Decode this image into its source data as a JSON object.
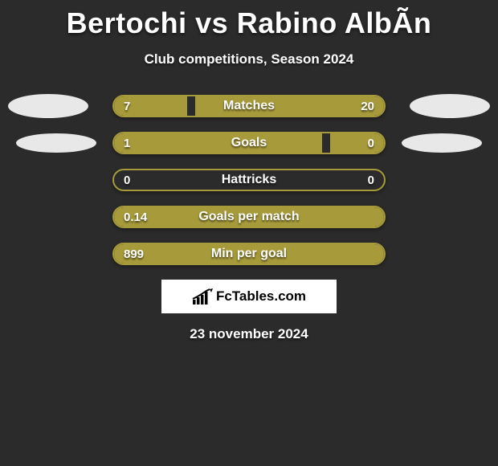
{
  "title": "Bertochi vs Rabino AlbÃ­n",
  "subtitle": "Club competitions, Season 2024",
  "bar_color": "#a79a3a",
  "bar_border_color": "#a79a3a",
  "background_color": "#2b2b2b",
  "ellipse_color": "#e8e8e8",
  "text_color": "#ffffff",
  "bar_container_width": 336,
  "rows": [
    {
      "label": "Matches",
      "left": "7",
      "right": "20",
      "left_pct": 27,
      "right_pct": 70,
      "show_ellipses": "top"
    },
    {
      "label": "Goals",
      "left": "1",
      "right": "0",
      "left_pct": 77,
      "right_pct": 20,
      "show_ellipses": "second"
    },
    {
      "label": "Hattricks",
      "left": "0",
      "right": "0",
      "left_pct": 0,
      "right_pct": 0
    },
    {
      "label": "Goals per match",
      "left": "0.14",
      "right": "",
      "left_pct": 100,
      "right_pct": 0,
      "full": true
    },
    {
      "label": "Min per goal",
      "left": "899",
      "right": "",
      "left_pct": 100,
      "right_pct": 0,
      "full": true
    }
  ],
  "footer_brand": "FcTables.com",
  "date": "23 november 2024"
}
